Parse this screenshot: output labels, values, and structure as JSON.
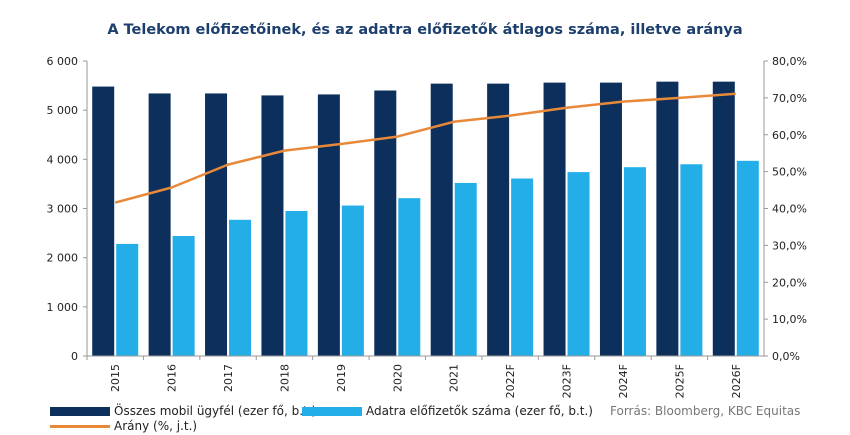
{
  "chart_data": {
    "type": "bar",
    "title": "A Telekom előfizetőinek, és az adatra előfizetők átlagos száma, illetve  aránya",
    "categories": [
      "2015",
      "2016",
      "2017",
      "2018",
      "2019",
      "2020",
      "2021",
      "2022F",
      "2023F",
      "2024F",
      "2025F",
      "2026F"
    ],
    "series": [
      {
        "name": "Összes mobil ügyfél (ezer fő, b.t.)",
        "type": "bar",
        "axis": "left",
        "color": "#0c2f5c",
        "values": [
          5480,
          5340,
          5340,
          5300,
          5320,
          5400,
          5540,
          5540,
          5560,
          5560,
          5580,
          5580
        ]
      },
      {
        "name": "Adatra előfizetők száma (ezer fő, b.t.)",
        "type": "bar",
        "axis": "left",
        "color": "#23aee8",
        "values": [
          2280,
          2440,
          2770,
          2950,
          3060,
          3210,
          3520,
          3610,
          3740,
          3840,
          3900,
          3970
        ]
      },
      {
        "name": "Arány (%, j.t.)",
        "type": "line",
        "axis": "right",
        "color": "#e8893a",
        "values": [
          41.6,
          45.7,
          51.9,
          55.7,
          57.5,
          59.5,
          63.5,
          65.2,
          67.3,
          69.0,
          70.0,
          71.1
        ]
      }
    ],
    "y_left": {
      "min": 0,
      "max": 6000,
      "step": 1000,
      "tick_labels": [
        "0",
        "1 000",
        "2 000",
        "3 000",
        "4 000",
        "5 000",
        "6 000"
      ]
    },
    "y_right": {
      "min": 0,
      "max": 80,
      "step": 10,
      "tick_labels": [
        "0,0%",
        "10,0%",
        "20,0%",
        "30,0%",
        "40,0%",
        "50,0%",
        "60,0%",
        "70,0%",
        "80,0%"
      ]
    },
    "grid": false,
    "legend_position": "bottom"
  },
  "source_text": "Forrás: Bloomberg, KBC Equitas"
}
